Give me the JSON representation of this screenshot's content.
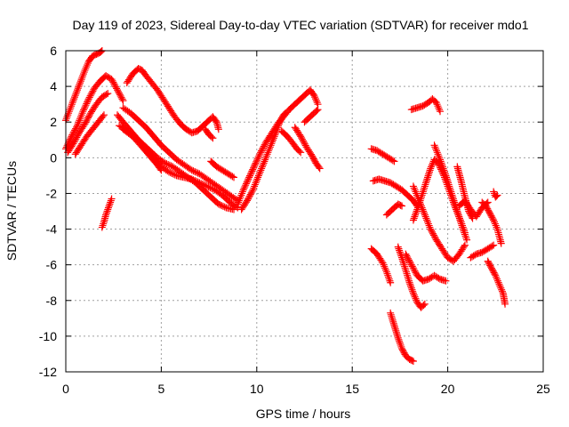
{
  "chart_data": {
    "type": "scatter",
    "title": "Day 119 of 2023, Sidereal Day-to-day VTEC variation (SDTVAR) for receiver mdo1",
    "xlabel": "GPS time / hours",
    "ylabel": "SDTVAR / TECUs",
    "xlim": [
      0,
      25
    ],
    "ylim": [
      -12,
      6
    ],
    "x_ticks": [
      "0",
      "5",
      "10",
      "15",
      "20",
      "25"
    ],
    "y_ticks": [
      "6",
      "4",
      "2",
      "0",
      "-2",
      "-4",
      "-6",
      "-8",
      "-10",
      "-12"
    ],
    "grid": true,
    "legend": "none",
    "marker": "plus",
    "marker_color": "#ff0000",
    "series": [
      {
        "points": [
          [
            0.0,
            0.5
          ],
          [
            0.3,
            1.2
          ],
          [
            0.6,
            1.8
          ],
          [
            0.9,
            2.6
          ],
          [
            1.2,
            3.3
          ],
          [
            1.5,
            3.9
          ],
          [
            1.8,
            4.3
          ],
          [
            2.1,
            4.6
          ],
          [
            2.4,
            4.4
          ],
          [
            2.7,
            3.8
          ],
          [
            3.0,
            3.2
          ]
        ]
      },
      {
        "points": [
          [
            0.0,
            2.1
          ],
          [
            0.25,
            2.8
          ],
          [
            0.5,
            3.5
          ],
          [
            0.75,
            4.2
          ],
          [
            1.0,
            4.9
          ],
          [
            1.2,
            5.4
          ],
          [
            1.4,
            5.7
          ],
          [
            1.6,
            5.8
          ],
          [
            1.8,
            5.9
          ],
          [
            1.9,
            6.0
          ]
        ]
      },
      {
        "points": [
          [
            0.1,
            0.3
          ],
          [
            0.4,
            0.8
          ],
          [
            0.7,
            1.4
          ],
          [
            1.0,
            1.9
          ],
          [
            1.3,
            2.5
          ],
          [
            1.6,
            3.0
          ],
          [
            1.9,
            3.4
          ],
          [
            2.2,
            3.6
          ]
        ]
      },
      {
        "points": [
          [
            0.5,
            0.2
          ],
          [
            0.8,
            0.7
          ],
          [
            1.1,
            1.2
          ],
          [
            1.4,
            1.6
          ],
          [
            1.7,
            2.0
          ],
          [
            2.0,
            2.4
          ]
        ]
      },
      {
        "points": [
          [
            1.9,
            -3.9
          ],
          [
            2.0,
            -3.6
          ],
          [
            2.1,
            -3.2
          ],
          [
            2.2,
            -2.9
          ],
          [
            2.3,
            -2.6
          ],
          [
            2.4,
            -2.3
          ]
        ]
      },
      {
        "points": [
          [
            2.7,
            2.4
          ],
          [
            3.0,
            2.0
          ],
          [
            3.4,
            1.5
          ],
          [
            3.8,
            1.0
          ],
          [
            4.2,
            0.5
          ],
          [
            4.6,
            0.0
          ],
          [
            5.0,
            -0.5
          ],
          [
            5.4,
            -0.8
          ],
          [
            5.8,
            -1.0
          ],
          [
            6.2,
            -1.1
          ],
          [
            6.6,
            -1.2
          ],
          [
            7.0,
            -1.4
          ],
          [
            7.4,
            -1.6
          ],
          [
            7.8,
            -1.8
          ],
          [
            8.2,
            -2.1
          ],
          [
            8.6,
            -2.5
          ],
          [
            9.0,
            -2.8
          ]
        ]
      },
      {
        "points": [
          [
            3.0,
            2.8
          ],
          [
            3.4,
            2.5
          ],
          [
            3.8,
            2.1
          ],
          [
            4.2,
            1.7
          ],
          [
            4.6,
            1.2
          ],
          [
            5.0,
            0.7
          ],
          [
            5.4,
            0.3
          ],
          [
            5.8,
            -0.1
          ],
          [
            6.2,
            -0.4
          ],
          [
            6.6,
            -0.7
          ],
          [
            7.0,
            -0.9
          ],
          [
            7.4,
            -1.2
          ],
          [
            7.8,
            -1.5
          ],
          [
            8.2,
            -1.8
          ],
          [
            8.6,
            -2.1
          ],
          [
            9.0,
            -2.4
          ]
        ]
      },
      {
        "points": [
          [
            2.8,
            1.8
          ],
          [
            3.2,
            1.5
          ],
          [
            3.6,
            1.2
          ],
          [
            4.0,
            0.8
          ],
          [
            4.4,
            0.4
          ],
          [
            4.8,
            0.0
          ],
          [
            5.2,
            -0.3
          ],
          [
            5.6,
            -0.5
          ],
          [
            6.0,
            -0.8
          ],
          [
            6.4,
            -1.1
          ],
          [
            6.8,
            -1.4
          ],
          [
            7.2,
            -1.8
          ],
          [
            7.6,
            -2.2
          ],
          [
            8.0,
            -2.6
          ],
          [
            8.4,
            -2.8
          ],
          [
            8.8,
            -2.9
          ]
        ]
      },
      {
        "points": [
          [
            3.0,
            1.6
          ],
          [
            3.5,
            1.2
          ],
          [
            4.0,
            0.6
          ],
          [
            4.4,
            0.1
          ],
          [
            4.8,
            -0.4
          ],
          [
            5.0,
            -0.7
          ]
        ]
      },
      {
        "points": [
          [
            3.2,
            4.2
          ],
          [
            3.5,
            4.7
          ],
          [
            3.8,
            5.0
          ],
          [
            4.0,
            4.9
          ],
          [
            4.2,
            4.6
          ],
          [
            4.5,
            4.2
          ],
          [
            4.8,
            3.8
          ],
          [
            5.1,
            3.3
          ],
          [
            5.4,
            2.8
          ],
          [
            5.7,
            2.3
          ],
          [
            6.0,
            1.9
          ],
          [
            6.3,
            1.6
          ],
          [
            6.6,
            1.4
          ],
          [
            6.9,
            1.5
          ],
          [
            7.2,
            1.8
          ],
          [
            7.5,
            2.1
          ],
          [
            7.7,
            2.3
          ],
          [
            7.9,
            2.0
          ],
          [
            8.0,
            1.6
          ]
        ]
      },
      {
        "points": [
          [
            7.3,
            1.6
          ],
          [
            7.5,
            1.3
          ],
          [
            7.7,
            1.1
          ]
        ]
      },
      {
        "points": [
          [
            7.6,
            -0.2
          ],
          [
            7.9,
            -0.5
          ],
          [
            8.2,
            -0.7
          ],
          [
            8.5,
            -0.9
          ],
          [
            8.8,
            -1.1
          ]
        ]
      },
      {
        "points": [
          [
            9.0,
            -2.6
          ],
          [
            9.3,
            -1.8
          ],
          [
            9.6,
            -1.1
          ],
          [
            9.9,
            -0.4
          ],
          [
            10.2,
            0.3
          ],
          [
            10.5,
            0.9
          ],
          [
            10.8,
            1.4
          ],
          [
            11.1,
            1.9
          ],
          [
            11.4,
            2.3
          ],
          [
            11.7,
            2.7
          ],
          [
            12.0,
            3.0
          ],
          [
            12.3,
            3.3
          ],
          [
            12.6,
            3.6
          ],
          [
            12.8,
            3.8
          ],
          [
            13.0,
            3.5
          ],
          [
            13.2,
            3.0
          ]
        ]
      },
      {
        "points": [
          [
            9.2,
            -2.9
          ],
          [
            9.5,
            -2.4
          ],
          [
            9.8,
            -1.8
          ],
          [
            10.1,
            -1.0
          ],
          [
            10.4,
            -0.2
          ],
          [
            10.7,
            0.6
          ],
          [
            11.0,
            1.4
          ],
          [
            11.2,
            2.0
          ],
          [
            11.4,
            2.4
          ],
          [
            11.5,
            2.5
          ]
        ]
      },
      {
        "points": [
          [
            11.3,
            1.5
          ],
          [
            11.6,
            1.2
          ],
          [
            11.9,
            0.8
          ],
          [
            12.1,
            0.5
          ],
          [
            12.3,
            0.3
          ]
        ]
      },
      {
        "points": [
          [
            12.0,
            1.7
          ],
          [
            12.3,
            1.2
          ],
          [
            12.6,
            0.6
          ],
          [
            12.9,
            0.1
          ],
          [
            13.1,
            -0.3
          ],
          [
            13.3,
            -0.6
          ]
        ]
      },
      {
        "points": [
          [
            12.5,
            2.0
          ],
          [
            12.7,
            2.2
          ],
          [
            12.9,
            2.4
          ],
          [
            13.1,
            2.6
          ],
          [
            13.2,
            2.7
          ]
        ]
      },
      {
        "points": [
          [
            16.0,
            0.5
          ],
          [
            16.3,
            0.4
          ],
          [
            16.6,
            0.2
          ],
          [
            16.9,
            0.0
          ],
          [
            17.2,
            -0.2
          ]
        ]
      },
      {
        "points": [
          [
            16.1,
            -1.3
          ],
          [
            16.4,
            -1.2
          ],
          [
            16.7,
            -1.3
          ],
          [
            17.0,
            -1.4
          ],
          [
            17.3,
            -1.6
          ],
          [
            17.6,
            -1.8
          ],
          [
            17.9,
            -2.1
          ],
          [
            18.2,
            -2.4
          ],
          [
            18.4,
            -2.7
          ]
        ]
      },
      {
        "points": [
          [
            16.8,
            -3.2
          ],
          [
            17.0,
            -3.0
          ],
          [
            17.2,
            -2.8
          ],
          [
            17.4,
            -2.6
          ],
          [
            17.6,
            -2.7
          ]
        ]
      },
      {
        "points": [
          [
            16.0,
            -5.1
          ],
          [
            16.3,
            -5.4
          ],
          [
            16.6,
            -5.9
          ],
          [
            16.8,
            -6.4
          ],
          [
            17.0,
            -7.0
          ]
        ]
      },
      {
        "points": [
          [
            17.4,
            -5.0
          ],
          [
            17.6,
            -5.6
          ],
          [
            17.8,
            -6.3
          ],
          [
            18.0,
            -7.0
          ],
          [
            18.2,
            -7.6
          ],
          [
            18.4,
            -8.1
          ],
          [
            18.6,
            -8.4
          ],
          [
            18.8,
            -8.2
          ]
        ]
      },
      {
        "points": [
          [
            17.0,
            -8.7
          ],
          [
            17.2,
            -9.4
          ],
          [
            17.4,
            -10.1
          ],
          [
            17.6,
            -10.7
          ],
          [
            17.8,
            -11.1
          ],
          [
            18.0,
            -11.3
          ],
          [
            18.2,
            -11.4
          ]
        ]
      },
      {
        "points": [
          [
            17.8,
            -5.4
          ],
          [
            18.1,
            -6.0
          ],
          [
            18.4,
            -6.6
          ],
          [
            18.7,
            -6.9
          ],
          [
            19.0,
            -6.8
          ],
          [
            19.3,
            -6.6
          ],
          [
            19.6,
            -6.8
          ],
          [
            19.9,
            -6.9
          ]
        ]
      },
      {
        "points": [
          [
            18.2,
            -1.6
          ],
          [
            18.5,
            -2.4
          ],
          [
            18.8,
            -3.2
          ],
          [
            19.1,
            -4.0
          ],
          [
            19.4,
            -4.6
          ],
          [
            19.7,
            -5.1
          ],
          [
            20.0,
            -5.6
          ],
          [
            20.3,
            -5.8
          ],
          [
            20.6,
            -5.4
          ],
          [
            20.9,
            -4.9
          ]
        ]
      },
      {
        "points": [
          [
            18.2,
            -3.5
          ],
          [
            18.5,
            -2.6
          ],
          [
            18.8,
            -1.6
          ],
          [
            19.1,
            -0.6
          ],
          [
            19.3,
            -0.1
          ],
          [
            19.5,
            -0.3
          ],
          [
            19.8,
            -1.0
          ],
          [
            20.1,
            -1.9
          ],
          [
            20.4,
            -2.8
          ],
          [
            20.7,
            -3.6
          ],
          [
            20.9,
            -4.2
          ]
        ]
      },
      {
        "points": [
          [
            18.1,
            2.7
          ],
          [
            18.4,
            2.8
          ],
          [
            18.7,
            2.9
          ],
          [
            19.0,
            3.1
          ],
          [
            19.2,
            3.3
          ],
          [
            19.4,
            3.1
          ],
          [
            19.6,
            2.6
          ]
        ]
      },
      {
        "points": [
          [
            19.3,
            0.7
          ],
          [
            19.6,
            -0.1
          ],
          [
            19.9,
            -1.0
          ],
          [
            20.2,
            -2.0
          ],
          [
            20.5,
            -3.0
          ],
          [
            20.8,
            -4.0
          ],
          [
            21.0,
            -4.6
          ]
        ]
      },
      {
        "points": [
          [
            20.5,
            -0.5
          ],
          [
            20.7,
            -1.3
          ],
          [
            20.9,
            -2.2
          ],
          [
            21.1,
            -3.0
          ],
          [
            21.3,
            -3.4
          ]
        ]
      },
      {
        "points": [
          [
            20.6,
            -2.7
          ],
          [
            20.9,
            -2.4
          ],
          [
            21.2,
            -2.9
          ],
          [
            21.5,
            -3.3
          ],
          [
            21.8,
            -2.8
          ],
          [
            22.1,
            -2.5
          ]
        ]
      },
      {
        "points": [
          [
            21.2,
            -5.6
          ],
          [
            21.5,
            -5.4
          ],
          [
            21.8,
            -5.3
          ],
          [
            22.1,
            -5.1
          ],
          [
            22.4,
            -4.9
          ]
        ]
      },
      {
        "points": [
          [
            21.8,
            -2.5
          ],
          [
            22.0,
            -2.7
          ],
          [
            22.2,
            -3.1
          ],
          [
            22.4,
            -3.5
          ],
          [
            22.6,
            -4.0
          ],
          [
            22.8,
            -4.8
          ]
        ]
      },
      {
        "points": [
          [
            22.1,
            -5.8
          ],
          [
            22.3,
            -6.2
          ],
          [
            22.5,
            -6.6
          ],
          [
            22.7,
            -7.1
          ],
          [
            22.9,
            -7.6
          ],
          [
            23.0,
            -8.2
          ]
        ]
      },
      {
        "points": [
          [
            22.4,
            -1.9
          ],
          [
            22.5,
            -2.2
          ],
          [
            22.6,
            -2.1
          ]
        ]
      }
    ]
  }
}
